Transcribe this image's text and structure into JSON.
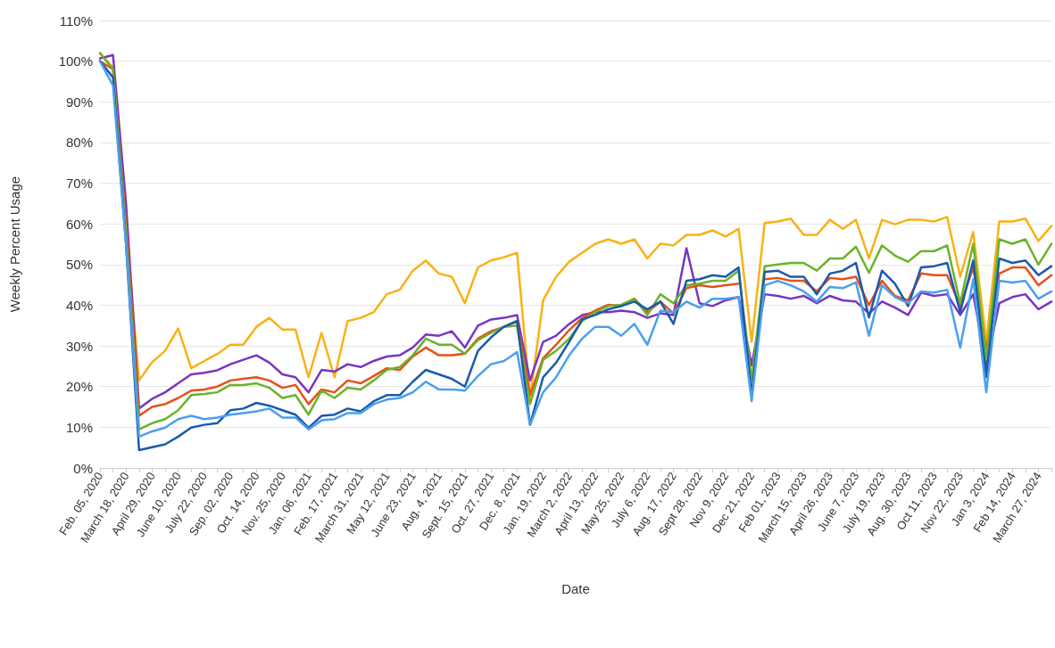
{
  "chart_data": {
    "type": "line",
    "xlabel": "Date",
    "ylabel": "Weekly Percent Usage",
    "categories": [
      "Feb. 05, 2020",
      null,
      "March 18, 2020",
      null,
      "April 29, 2020",
      null,
      "June 10, 2020",
      null,
      "July 22, 2020",
      null,
      "Sep. 02, 2020",
      null,
      "Oct. 14, 2020",
      null,
      "Nov. 25, 2020",
      null,
      "Jan. 06, 2021",
      null,
      "Feb. 17, 2021",
      null,
      "March 31, 2021",
      null,
      "May 12, 2021",
      null,
      "June 23, 2021",
      null,
      "Aug. 4, 2021",
      null,
      "Sept. 15, 2021",
      null,
      "Oct. 27, 2021",
      null,
      "Dec. 8, 2021",
      null,
      "Jan. 19, 2022",
      null,
      "March 2, 2022",
      null,
      "April 13, 2022",
      null,
      "May 25, 2022",
      null,
      "July 6, 2022",
      null,
      "Aug. 17, 2022",
      null,
      "Sept 28, 2022",
      null,
      "Nov 9, 2022",
      null,
      "Dec 21, 2022",
      null,
      "Feb 01, 2023",
      null,
      "March 15, 2023",
      null,
      "April 26, 2023",
      null,
      "June 7, 2023",
      null,
      "July 19, 2023",
      null,
      "Aug. 30, 2023",
      null,
      "Oct 11, 2023",
      null,
      "Nov 22, 2023",
      null,
      "Jan 3, 2024",
      null,
      "Feb 14, 2024",
      null,
      "March 27, 2024",
      null
    ],
    "series": [
      {
        "color": "#f9b115",
        "values": [
          102,
          98.5,
          60,
          21.5,
          26,
          28.8,
          34.3,
          24.5,
          26.3,
          28,
          30.3,
          30.3,
          34.7,
          36.9,
          34,
          34,
          22.3,
          33.2,
          22.3,
          36.1,
          36.9,
          38.3,
          42.7,
          43.8,
          48.5,
          51,
          47.8,
          47,
          40.5,
          49.3,
          51,
          51.8,
          52.9,
          17.2,
          41.2,
          47,
          50.7,
          52.9,
          55.1,
          56.2,
          55.1,
          56.2,
          51.5,
          55.1,
          54.7,
          57.3,
          57.3,
          58.4,
          56.9,
          58.8,
          31,
          60.2,
          60.6,
          61.3,
          57.3,
          57.3,
          61,
          58.8,
          61,
          51.5,
          61,
          59.9,
          61,
          61,
          60.6,
          61.7,
          47,
          58,
          31,
          60.6,
          60.6,
          61.3,
          55.8,
          59.5
        ]
      },
      {
        "color": "#7a35c0",
        "values": [
          100.7,
          101.5,
          65,
          14.6,
          17,
          18.6,
          20.8,
          23,
          23.4,
          24,
          25.5,
          26.6,
          27.7,
          25.9,
          23,
          22.3,
          18.6,
          24.1,
          23.7,
          25.5,
          24.8,
          26.3,
          27.4,
          27.7,
          29.6,
          32.8,
          32.5,
          33.6,
          29.6,
          35,
          36.5,
          36.9,
          37.6,
          21.5,
          31,
          32.5,
          35.4,
          37.6,
          38.3,
          38.3,
          38.7,
          38.3,
          36.9,
          38,
          37.6,
          54,
          40.5,
          39.8,
          41.2,
          42,
          25.2,
          42.7,
          42.3,
          41.6,
          42.3,
          40.5,
          42.3,
          41.2,
          40.9,
          38,
          40.9,
          39.4,
          37.6,
          43.1,
          42.3,
          42.7,
          37.6,
          42.7,
          25.2,
          40.5,
          42,
          42.7,
          39,
          40.9
        ]
      },
      {
        "color": "#e6501b",
        "values": [
          100,
          98,
          60,
          12.8,
          15,
          15.7,
          17.2,
          19,
          19.3,
          20,
          21.5,
          21.9,
          22.3,
          21.5,
          19.7,
          20.4,
          15.7,
          19.3,
          18.6,
          21.5,
          20.8,
          22.6,
          24.5,
          24.1,
          27.4,
          29.6,
          27.7,
          27.7,
          28.1,
          31.8,
          33.6,
          34.7,
          36.1,
          17.9,
          27,
          30.3,
          33.9,
          36.9,
          38.7,
          40.1,
          39.8,
          41.6,
          38.3,
          40.9,
          38,
          44.2,
          44.9,
          44.5,
          44.9,
          45.3,
          null,
          46.4,
          46.7,
          46,
          46,
          43.4,
          46.7,
          46.4,
          47,
          40,
          46,
          42.3,
          41.2,
          47.8,
          47.4,
          47.4,
          39.8,
          49.3,
          28.8,
          47.8,
          49.3,
          49.3,
          44.9,
          47.4
        ]
      },
      {
        "color": "#6cb22a",
        "values": [
          102,
          98,
          58,
          9.5,
          11,
          12,
          14.2,
          17.9,
          18.2,
          18.6,
          20.4,
          20.4,
          20.8,
          19.7,
          17.2,
          17.9,
          13.1,
          19,
          17.2,
          19.7,
          19.3,
          21.5,
          24.1,
          24.8,
          27.7,
          31.8,
          30.3,
          30.3,
          28.1,
          31.4,
          33.2,
          34.7,
          35,
          15.7,
          26.6,
          28.8,
          31.8,
          36.1,
          38.3,
          39.8,
          40.1,
          41.6,
          37.6,
          42.7,
          40.5,
          44.9,
          45.3,
          46,
          46,
          48.5,
          21.5,
          49.6,
          50,
          50.4,
          50.4,
          48.5,
          51.5,
          51.5,
          54.4,
          48,
          54.7,
          52.2,
          50.7,
          53.3,
          53.3,
          54.7,
          40.5,
          55.1,
          26.6,
          56.2,
          55.1,
          56.2,
          50,
          55.1
        ]
      },
      {
        "color": "#1a5aaa",
        "values": [
          100,
          96,
          55,
          4.4,
          5.1,
          5.8,
          7.7,
          9.9,
          10.6,
          11,
          14.2,
          14.6,
          16,
          15.3,
          14.2,
          13.1,
          9.9,
          12.8,
          13.1,
          14.6,
          13.9,
          16.4,
          17.9,
          17.9,
          21.2,
          24.1,
          23,
          21.9,
          20,
          28.8,
          32.1,
          34.7,
          36.1,
          10.6,
          22.3,
          25.9,
          31,
          36.5,
          37.6,
          39,
          39.8,
          40.9,
          39,
          40.9,
          35.4,
          46,
          46.4,
          47.4,
          47,
          49.3,
          17.9,
          48.2,
          48.5,
          47,
          47,
          42.7,
          47.8,
          48.5,
          50.4,
          37,
          48.5,
          45.3,
          39.8,
          49.3,
          49.6,
          50.4,
          38.3,
          51,
          22.3,
          51.5,
          50.4,
          51,
          47.4,
          49.6
        ]
      },
      {
        "color": "#4a9fee",
        "values": [
          100,
          94,
          55,
          7.7,
          9,
          9.9,
          12,
          12.8,
          12,
          12.4,
          13.1,
          13.5,
          13.9,
          14.6,
          12.4,
          12.4,
          9.5,
          11.7,
          12,
          13.5,
          13.5,
          15.7,
          16.8,
          17.2,
          18.6,
          21.2,
          19.3,
          19.3,
          19,
          22.6,
          25.5,
          26.3,
          28.5,
          10.6,
          18.6,
          22.3,
          27.7,
          31.8,
          34.7,
          34.7,
          32.5,
          35.4,
          30.3,
          38.7,
          38.3,
          40.9,
          39.4,
          41.6,
          41.6,
          42,
          16.4,
          44.9,
          46,
          44.9,
          43.4,
          40.9,
          44.5,
          44.2,
          45.6,
          32.5,
          44.9,
          42,
          40.5,
          43.4,
          43.1,
          43.8,
          29.6,
          46.4,
          18.6,
          46,
          45.6,
          46,
          41.6,
          43.4
        ]
      }
    ],
    "ylim": [
      0,
      110
    ],
    "yticks": [
      {
        "value": 0,
        "label": "0%"
      },
      {
        "value": 10,
        "label": "10%"
      },
      {
        "value": 20,
        "label": "20%"
      },
      {
        "value": 30,
        "label": "30%"
      },
      {
        "value": 40,
        "label": "40%"
      },
      {
        "value": 50,
        "label": "50%"
      },
      {
        "value": 60,
        "label": "60%"
      },
      {
        "value": 70,
        "label": "70%"
      },
      {
        "value": 80,
        "label": "80%"
      },
      {
        "value": 90,
        "label": "90%"
      },
      {
        "value": 100,
        "label": "100%"
      },
      {
        "value": 110,
        "label": "110%"
      }
    ],
    "grid": "y",
    "marker": "none",
    "line_style": "solid"
  }
}
